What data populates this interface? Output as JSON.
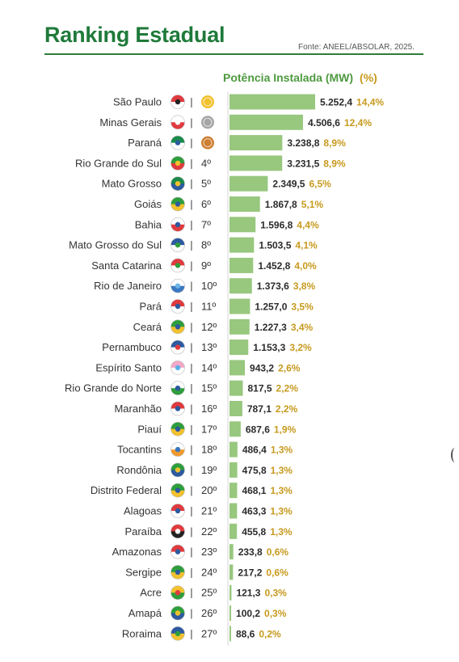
{
  "header": {
    "title": "Ranking Estadual",
    "source": "Fonte: ANEEL/ABSOLAR, 2025."
  },
  "chart_data": {
    "type": "bar",
    "orientation": "horizontal",
    "title": "Potência Instalada (MW)",
    "pct_header": "(%)",
    "xlim": [
      0,
      5252.4
    ],
    "grid": false,
    "medal_colors": [
      "#f2c12e",
      "#a6a6a6",
      "#cd7f32"
    ],
    "bar_color": "#98c77e",
    "rows": [
      {
        "state": "São Paulo",
        "rank": "",
        "medal": "gold",
        "value": 5252.4,
        "value_label": "5.252,4",
        "pct": "14,4%"
      },
      {
        "state": "Minas Gerais",
        "rank": "",
        "medal": "silver",
        "value": 4506.6,
        "value_label": "4.506,6",
        "pct": "12,4%"
      },
      {
        "state": "Paraná",
        "rank": "",
        "medal": "bronze",
        "value": 3238.8,
        "value_label": "3.238,8",
        "pct": "8,9%"
      },
      {
        "state": "Rio Grande do Sul",
        "rank": "4º",
        "medal": "",
        "value": 3231.5,
        "value_label": "3.231,5",
        "pct": "8,9%"
      },
      {
        "state": "Mato Grosso",
        "rank": "5º",
        "medal": "",
        "value": 2349.5,
        "value_label": "2.349,5",
        "pct": "6,5%"
      },
      {
        "state": "Goiás",
        "rank": "6º",
        "medal": "",
        "value": 1867.8,
        "value_label": "1.867,8",
        "pct": "5,1%"
      },
      {
        "state": "Bahia",
        "rank": "7º",
        "medal": "",
        "value": 1596.8,
        "value_label": "1.596,8",
        "pct": "4,4%"
      },
      {
        "state": "Mato Grosso do Sul",
        "rank": "8º",
        "medal": "",
        "value": 1503.5,
        "value_label": "1.503,5",
        "pct": "4,1%"
      },
      {
        "state": "Santa Catarina",
        "rank": "9º",
        "medal": "",
        "value": 1452.8,
        "value_label": "1.452,8",
        "pct": "4,0%"
      },
      {
        "state": "Rio de Janeiro",
        "rank": "10º",
        "medal": "",
        "value": 1373.6,
        "value_label": "1.373,6",
        "pct": "3,8%"
      },
      {
        "state": "Pará",
        "rank": "11º",
        "medal": "",
        "value": 1257.0,
        "value_label": "1.257,0",
        "pct": "3,5%"
      },
      {
        "state": "Ceará",
        "rank": "12º",
        "medal": "",
        "value": 1227.3,
        "value_label": "1.227,3",
        "pct": "3,4%"
      },
      {
        "state": "Pernambuco",
        "rank": "13º",
        "medal": "",
        "value": 1153.3,
        "value_label": "1.153,3",
        "pct": "3,2%"
      },
      {
        "state": "Espírito Santo",
        "rank": "14º",
        "medal": "",
        "value": 943.2,
        "value_label": "943,2",
        "pct": "2,6%"
      },
      {
        "state": "Rio Grande do Norte",
        "rank": "15º",
        "medal": "",
        "value": 817.5,
        "value_label": "817,5",
        "pct": "2,2%"
      },
      {
        "state": "Maranhão",
        "rank": "16º",
        "medal": "",
        "value": 787.1,
        "value_label": "787,1",
        "pct": "2,2%"
      },
      {
        "state": "Piauí",
        "rank": "17º",
        "medal": "",
        "value": 687.6,
        "value_label": "687,6",
        "pct": "1,9%"
      },
      {
        "state": "Tocantins",
        "rank": "18º",
        "medal": "",
        "value": 486.4,
        "value_label": "486,4",
        "pct": "1,3%"
      },
      {
        "state": "Rondônia",
        "rank": "19º",
        "medal": "",
        "value": 475.8,
        "value_label": "475,8",
        "pct": "1,3%"
      },
      {
        "state": "Distrito Federal",
        "rank": "20º",
        "medal": "",
        "value": 468.1,
        "value_label": "468,1",
        "pct": "1,3%"
      },
      {
        "state": "Alagoas",
        "rank": "21º",
        "medal": "",
        "value": 463.3,
        "value_label": "463,3",
        "pct": "1,3%"
      },
      {
        "state": "Paraíba",
        "rank": "22º",
        "medal": "",
        "value": 455.8,
        "value_label": "455,8",
        "pct": "1,3%"
      },
      {
        "state": "Amazonas",
        "rank": "23º",
        "medal": "",
        "value": 233.8,
        "value_label": "233,8",
        "pct": "0,6%"
      },
      {
        "state": "Sergipe",
        "rank": "24º",
        "medal": "",
        "value": 217.2,
        "value_label": "217,2",
        "pct": "0,6%"
      },
      {
        "state": "Acre",
        "rank": "25º",
        "medal": "",
        "value": 121.3,
        "value_label": "121,3",
        "pct": "0,3%"
      },
      {
        "state": "Amapá",
        "rank": "26º",
        "medal": "",
        "value": 100.2,
        "value_label": "100,2",
        "pct": "0,3%"
      },
      {
        "state": "Roraima",
        "rank": "27º",
        "medal": "",
        "value": 88.6,
        "value_label": "88,6",
        "pct": "0,2%"
      }
    ],
    "flags": [
      [
        "#e03a3e",
        "#ffffff",
        "#222222"
      ],
      [
        "#ffffff",
        "#e03a3e",
        "#ffffff"
      ],
      [
        "#1a8a4a",
        "#ffffff",
        "#2c5aa0"
      ],
      [
        "#2e9e3c",
        "#e03a3e",
        "#f2c12e"
      ],
      [
        "#1a8a4a",
        "#2c5aa0",
        "#f2c12e"
      ],
      [
        "#2e9e3c",
        "#f2c12e",
        "#2c5aa0"
      ],
      [
        "#ffffff",
        "#e03a3e",
        "#2c5aa0"
      ],
      [
        "#2c5aa0",
        "#ffffff",
        "#2e9e3c"
      ],
      [
        "#e03a3e",
        "#ffffff",
        "#2e9e3c"
      ],
      [
        "#ffffff",
        "#3a78c2",
        "#6bb3e6"
      ],
      [
        "#e03a3e",
        "#ffffff",
        "#2c5aa0"
      ],
      [
        "#2e9e3c",
        "#f2c12e",
        "#2c5aa0"
      ],
      [
        "#2c5aa0",
        "#ffffff",
        "#e03a3e"
      ],
      [
        "#f4a7c7",
        "#ffffff",
        "#5ab0e6"
      ],
      [
        "#ffffff",
        "#2e9e3c",
        "#2c5aa0"
      ],
      [
        "#e03a3e",
        "#ffffff",
        "#2c5aa0"
      ],
      [
        "#2e9e3c",
        "#f2c12e",
        "#2c5aa0"
      ],
      [
        "#ffffff",
        "#f29a2e",
        "#3a78c2"
      ],
      [
        "#2e9e3c",
        "#2c5aa0",
        "#f2c12e"
      ],
      [
        "#2e9e3c",
        "#f2c12e",
        "#2c5aa0"
      ],
      [
        "#e03a3e",
        "#ffffff",
        "#2c5aa0"
      ],
      [
        "#e03a3e",
        "#222222",
        "#ffffff"
      ],
      [
        "#e03a3e",
        "#ffffff",
        "#2c5aa0"
      ],
      [
        "#2e9e3c",
        "#f2c12e",
        "#2c5aa0"
      ],
      [
        "#f2c12e",
        "#2e9e3c",
        "#e03a3e"
      ],
      [
        "#2e9e3c",
        "#2c5aa0",
        "#f2c12e"
      ],
      [
        "#2c5aa0",
        "#f2c12e",
        "#2e9e3c"
      ]
    ]
  }
}
